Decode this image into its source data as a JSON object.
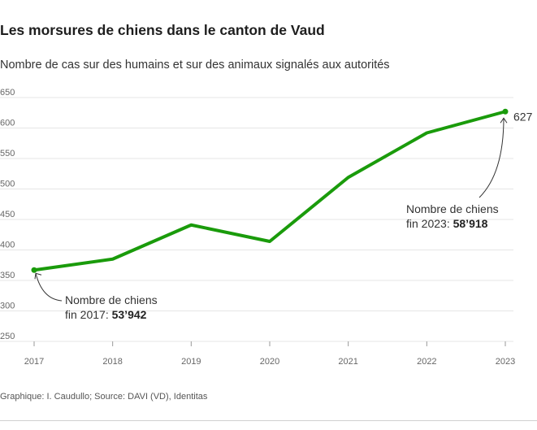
{
  "header": {
    "title": "Les morsures de chiens dans le canton de Vaud",
    "subtitle": "Nombre de cas sur des humains et sur des animaux signalés aux autorités"
  },
  "footer": {
    "source": "Graphique: I. Caudullo; Source: DAVI (VD), Identitas"
  },
  "colors": {
    "line": "#1a9b0b",
    "grid": "#e6e6e6",
    "tick_text": "#666666",
    "annotation": "#333333"
  },
  "chart_data": {
    "type": "line",
    "title": "Les morsures de chiens dans le canton de Vaud",
    "subtitle": "Nombre de cas sur des humains et sur des animaux signalés aux autorités",
    "xlabel": "",
    "ylabel": "",
    "x": [
      "2017",
      "2018",
      "2019",
      "2020",
      "2021",
      "2022",
      "2023"
    ],
    "series": [
      {
        "values": [
          367,
          385,
          441,
          414,
          519,
          592,
          627
        ]
      }
    ],
    "yticks": [
      "650",
      "600",
      "550",
      "500",
      "450",
      "400",
      "350",
      "300",
      "250"
    ],
    "ylim": [
      250,
      650
    ],
    "grid": true,
    "end_label": "627",
    "annotations": [
      {
        "line1": "Nombre de chiens",
        "line2_prefix": "fin 2017: ",
        "line2_bold": "53’942"
      },
      {
        "line1": "Nombre de chiens",
        "line2_prefix": "fin 2023: ",
        "line2_bold": "58’918"
      }
    ]
  }
}
